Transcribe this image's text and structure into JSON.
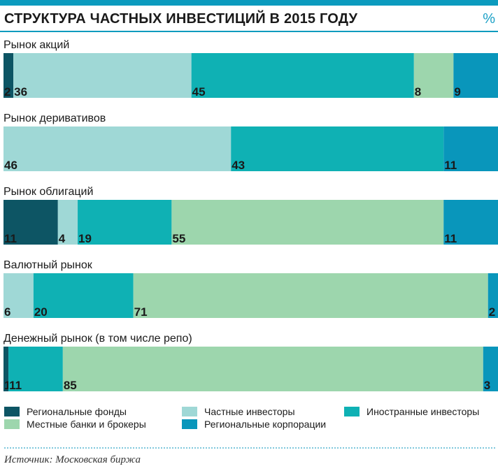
{
  "header": {
    "title": "СТРУКТУРА ЧАСТНЫХ ИНВЕСТИЦИЙ В 2015 ГОДУ",
    "unit": "%"
  },
  "source": "Источник: Московская биржа",
  "colors": {
    "accent": "#0b9bbe",
    "regional_funds": "#0d5564",
    "private_investors": "#9fd8d6",
    "foreign_investors": "#0fb1b4",
    "local_banks_brokers": "#9dd6ad",
    "regional_corporations": "#0996bb"
  },
  "legend": [
    {
      "label": "Региональные фонды",
      "color": "#0d5564"
    },
    {
      "label": "Частные инвесторы",
      "color": "#9fd8d6"
    },
    {
      "label": "Иностранные инвесторы",
      "color": "#0fb1b4"
    },
    {
      "label": "Местные банки и брокеры",
      "color": "#9dd6ad"
    },
    {
      "label": "Региональные корпорации",
      "color": "#0996bb"
    }
  ],
  "chart_data": {
    "type": "bar",
    "stacked": true,
    "orientation": "horizontal",
    "title": "СТРУКТУРА ЧАСТНЫХ ИНВЕСТИЦИЙ В 2015 ГОДУ",
    "unit": "%",
    "xlim": [
      0,
      100
    ],
    "grid": false,
    "legend_position": "bottom",
    "categories": [
      "Рынок акций",
      "Рынок деривативов",
      "Рынок облигаций",
      "Валютный рынок",
      "Денежный рынок (в том числе репо)"
    ],
    "series": [
      {
        "name": "Региональные фонды",
        "color": "#0d5564",
        "values": [
          2,
          0,
          11,
          0,
          1
        ]
      },
      {
        "name": "Частные инвесторы",
        "color": "#9fd8d6",
        "values": [
          36,
          46,
          4,
          6,
          0
        ]
      },
      {
        "name": "Иностранные инвесторы",
        "color": "#0fb1b4",
        "values": [
          45,
          43,
          19,
          20,
          11
        ]
      },
      {
        "name": "Местные банки и брокеры",
        "color": "#9dd6ad",
        "values": [
          8,
          0,
          55,
          71,
          85
        ]
      },
      {
        "name": "Региональные корпорации",
        "color": "#0996bb",
        "values": [
          9,
          11,
          11,
          2,
          3
        ]
      }
    ]
  }
}
